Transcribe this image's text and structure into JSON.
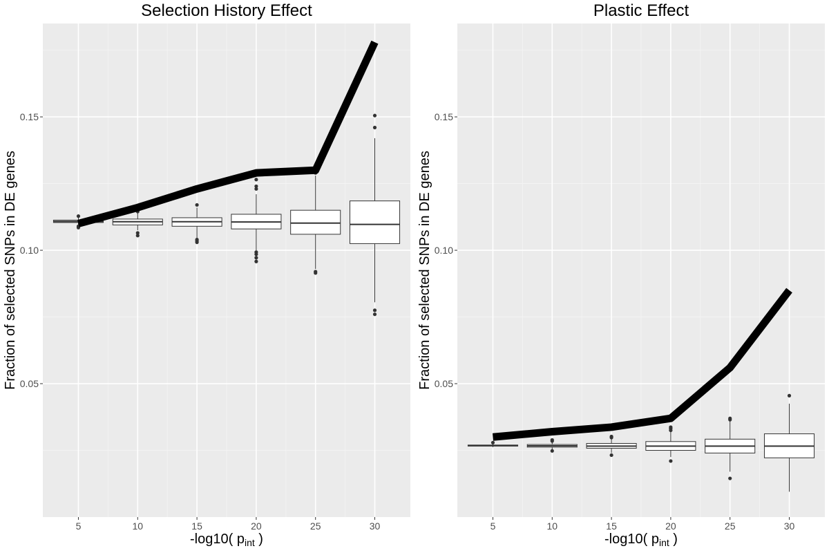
{
  "chart_data": [
    {
      "type": "box+line",
      "title": "Selection History Effect",
      "xlabel_main": "-log10( p",
      "xlabel_sub": "int",
      "xlabel_close": " )",
      "ylabel": "Fraction of selected SNPs in DE genes",
      "x": [
        5,
        10,
        15,
        20,
        25,
        30
      ],
      "x_tick_labels": [
        "5",
        "10",
        "15",
        "20",
        "25",
        "30"
      ],
      "y_ticks": [
        0.05,
        0.1,
        0.15
      ],
      "y_tick_labels": [
        "0.05",
        "0.10",
        "0.15"
      ],
      "xlim": [
        2,
        33
      ],
      "ylim": [
        0.0,
        0.185
      ],
      "observed_line": [
        0.11,
        0.116,
        0.123,
        0.129,
        0.13,
        0.178
      ],
      "boxes": [
        {
          "x": 5,
          "q1": 0.1104,
          "median": 0.1108,
          "q3": 0.1113,
          "wlow": 0.1095,
          "whigh": 0.1122,
          "outliers": [
            0.1085,
            0.109,
            0.1128
          ]
        },
        {
          "x": 10,
          "q1": 0.1095,
          "median": 0.1107,
          "q3": 0.1117,
          "wlow": 0.1075,
          "whigh": 0.114,
          "outliers": [
            0.1055,
            0.1065,
            0.1145
          ]
        },
        {
          "x": 15,
          "q1": 0.109,
          "median": 0.1107,
          "q3": 0.1122,
          "wlow": 0.1045,
          "whigh": 0.116,
          "outliers": [
            0.103,
            0.1035,
            0.104,
            0.117
          ]
        },
        {
          "x": 20,
          "q1": 0.108,
          "median": 0.1106,
          "q3": 0.1135,
          "wlow": 0.1,
          "whigh": 0.121,
          "outliers": [
            0.0958,
            0.0972,
            0.0985,
            0.0993,
            0.123,
            0.124,
            0.1265
          ]
        },
        {
          "x": 25,
          "q1": 0.106,
          "median": 0.1102,
          "q3": 0.115,
          "wlow": 0.093,
          "whigh": 0.128,
          "outliers": [
            0.0915,
            0.092,
            0.129
          ]
        },
        {
          "x": 30,
          "q1": 0.1025,
          "median": 0.1097,
          "q3": 0.1185,
          "wlow": 0.0805,
          "whigh": 0.142,
          "outliers": [
            0.076,
            0.0775,
            0.146,
            0.1505
          ]
        }
      ],
      "grid": true,
      "background_color": "#ebebeb",
      "observed_line_color": "#000000"
    },
    {
      "type": "box+line",
      "title": "Plastic Effect",
      "xlabel_main": "-log10( p",
      "xlabel_sub": "int",
      "xlabel_close": " )",
      "ylabel": "Fraction of selected SNPs in DE genes",
      "x": [
        5,
        10,
        15,
        20,
        25,
        30
      ],
      "x_tick_labels": [
        "5",
        "10",
        "15",
        "20",
        "25",
        "30"
      ],
      "y_ticks": [
        0.05,
        0.1,
        0.15
      ],
      "y_tick_labels": [
        "0.05",
        "0.10",
        "0.15"
      ],
      "xlim": [
        2,
        33
      ],
      "ylim": [
        0.0,
        0.185
      ],
      "observed_line": [
        0.03,
        0.032,
        0.0337,
        0.037,
        0.056,
        0.085
      ],
      "boxes": [
        {
          "x": 5,
          "q1": 0.0266,
          "median": 0.0268,
          "q3": 0.027,
          "wlow": 0.0262,
          "whigh": 0.0274,
          "outliers": [
            0.0279
          ]
        },
        {
          "x": 10,
          "q1": 0.0262,
          "median": 0.0267,
          "q3": 0.0272,
          "wlow": 0.0254,
          "whigh": 0.0282,
          "outliers": [
            0.0248,
            0.0285,
            0.0289
          ]
        },
        {
          "x": 15,
          "q1": 0.0258,
          "median": 0.0266,
          "q3": 0.0276,
          "wlow": 0.024,
          "whigh": 0.0294,
          "outliers": [
            0.0232,
            0.0298,
            0.0302
          ]
        },
        {
          "x": 20,
          "q1": 0.025,
          "median": 0.0266,
          "q3": 0.0283,
          "wlow": 0.0225,
          "whigh": 0.032,
          "outliers": [
            0.021,
            0.0325,
            0.0332,
            0.0337
          ]
        },
        {
          "x": 25,
          "q1": 0.024,
          "median": 0.0266,
          "q3": 0.0292,
          "wlow": 0.017,
          "whigh": 0.036,
          "outliers": [
            0.0145,
            0.0365,
            0.037
          ]
        },
        {
          "x": 30,
          "q1": 0.0222,
          "median": 0.0266,
          "q3": 0.0312,
          "wlow": 0.0095,
          "whigh": 0.0425,
          "outliers": [
            0.0455
          ]
        }
      ],
      "grid": true,
      "background_color": "#ebebeb",
      "observed_line_color": "#000000"
    }
  ]
}
